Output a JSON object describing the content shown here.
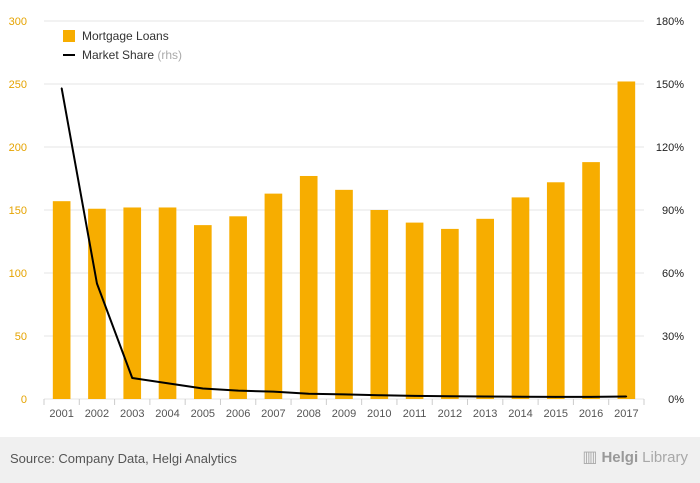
{
  "colors": {
    "bar": "#f7ad00",
    "line": "#000000",
    "left_axis_text": "#e5a300",
    "right_axis_text": "#222222",
    "x_axis_text": "#555555",
    "grid": "#e6e6e6",
    "footer_bg": "#f0f0f0"
  },
  "chart_data": {
    "type": "bar",
    "categories": [
      "2001",
      "2002",
      "2003",
      "2004",
      "2005",
      "2006",
      "2007",
      "2008",
      "2009",
      "2010",
      "2011",
      "2012",
      "2013",
      "2014",
      "2015",
      "2016",
      "2017"
    ],
    "series": [
      {
        "name": "Mortgage Loans",
        "type": "bar",
        "axis": "left",
        "values": [
          157,
          151,
          152,
          152,
          138,
          145,
          163,
          177,
          166,
          150,
          140,
          135,
          143,
          160,
          172,
          188,
          252
        ]
      },
      {
        "name": "Market Share",
        "type": "line",
        "axis": "right",
        "values": [
          148,
          55,
          10,
          7.5,
          5,
          4,
          3.5,
          2.5,
          2.2,
          1.8,
          1.5,
          1.3,
          1.2,
          1.1,
          1.0,
          1.0,
          1.2
        ]
      }
    ],
    "left_axis": {
      "range": [
        0,
        300
      ],
      "ticks": [
        "0",
        "50",
        "100",
        "150",
        "200",
        "250",
        "300"
      ]
    },
    "right_axis": {
      "range": [
        0,
        180
      ],
      "ticks": [
        "0%",
        "30%",
        "60%",
        "90%",
        "120%",
        "150%",
        "180%"
      ]
    },
    "legend": {
      "position": "top-left",
      "items": [
        {
          "label": "Mortgage Loans",
          "suffix": ""
        },
        {
          "label": "Market Share",
          "suffix": "(rhs)"
        }
      ]
    },
    "grid": true
  },
  "footer": {
    "source": "Source: Company Data, Helgi Analytics",
    "logo_part1": "Helgi",
    "logo_part2": "Library"
  }
}
